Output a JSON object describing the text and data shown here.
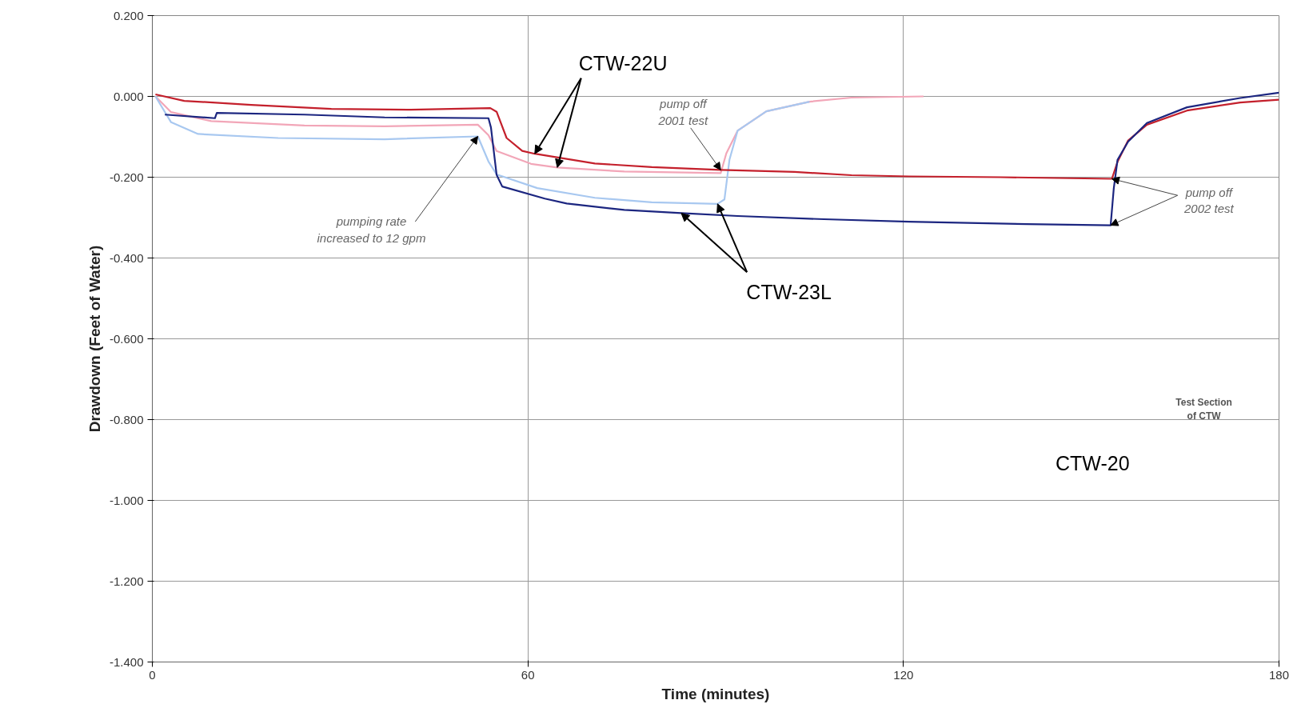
{
  "chart_data": {
    "type": "line",
    "xlabel": "Time (minutes)",
    "ylabel": "Drawdown (Feet of Water)",
    "xlim": [
      0,
      180
    ],
    "xticks": [
      0,
      60,
      120,
      180
    ],
    "ylim": [
      -1.4,
      0.2
    ],
    "yticks": [
      {
        "value": 0.2,
        "label": "0.200"
      },
      {
        "value": 0,
        "label": "0.000"
      },
      {
        "value": -0.2,
        "label": "-0.200"
      },
      {
        "value": -0.4,
        "label": "-0.400"
      },
      {
        "value": -0.6,
        "label": "-0.600"
      },
      {
        "value": -0.8,
        "label": "-0.800"
      },
      {
        "value": -1.0,
        "label": "-1.000"
      },
      {
        "value": -1.2,
        "label": "-1.200"
      },
      {
        "value": -1.4,
        "label": "-1.400"
      }
    ],
    "grid": true,
    "marker": "none",
    "line_style": "solid",
    "series": [
      {
        "color": "#f2a6b8",
        "x": [
          0.5,
          3,
          9.4,
          24.3,
          37.1,
          52,
          53.7,
          55,
          60.5,
          64.7,
          75.4,
          90.8,
          91.7,
          93.5,
          98.1,
          105,
          111.7,
          123.2
        ],
        "values": [
          0.0,
          -0.039,
          -0.061,
          -0.072,
          -0.074,
          -0.07,
          -0.096,
          -0.135,
          -0.167,
          -0.176,
          -0.186,
          -0.19,
          -0.141,
          -0.085,
          -0.037,
          -0.013,
          -0.003,
          0.0
        ]
      },
      {
        "color": "#a8c8f0",
        "x": [
          0.5,
          3,
          7.3,
          20.1,
          37.1,
          52,
          53.7,
          55,
          61.5,
          70.7,
          79.8,
          90.3,
          91.4,
          92.2,
          93.5,
          98.1,
          105
        ],
        "values": [
          0.0,
          -0.064,
          -0.093,
          -0.103,
          -0.106,
          -0.099,
          -0.161,
          -0.193,
          -0.227,
          -0.251,
          -0.262,
          -0.266,
          -0.255,
          -0.157,
          -0.085,
          -0.037,
          -0.013
        ]
      },
      {
        "color": "#c4202c",
        "x": [
          0.5,
          5.1,
          15.8,
          28.6,
          41.3,
          54,
          55,
          56.6,
          59.1,
          61.1,
          70.7,
          79.8,
          90.8,
          102.6,
          111.7,
          120.9,
          135.5,
          153.3,
          154.2,
          155.9,
          158.9,
          165.3,
          173.8,
          180
        ],
        "values": [
          0.005,
          -0.011,
          -0.021,
          -0.031,
          -0.033,
          -0.029,
          -0.038,
          -0.103,
          -0.135,
          -0.142,
          -0.166,
          -0.175,
          -0.182,
          -0.187,
          -0.195,
          -0.198,
          -0.2,
          -0.204,
          -0.162,
          -0.109,
          -0.07,
          -0.035,
          -0.015,
          -0.008
        ]
      },
      {
        "color": "#1c2680",
        "x": [
          2,
          10,
          10.3,
          24.3,
          37.1,
          53.7,
          54.1,
          55,
          55.9,
          62.7,
          66.2,
          75.4,
          84.5,
          93.5,
          107.3,
          120.9,
          139.7,
          153.1,
          153.6,
          154.2,
          155.9,
          158.9,
          165.3,
          173.8,
          180
        ],
        "values": [
          -0.045,
          -0.054,
          -0.041,
          -0.045,
          -0.052,
          -0.054,
          -0.077,
          -0.194,
          -0.223,
          -0.253,
          -0.265,
          -0.281,
          -0.289,
          -0.296,
          -0.304,
          -0.31,
          -0.316,
          -0.319,
          -0.228,
          -0.157,
          -0.112,
          -0.066,
          -0.027,
          -0.004,
          0.009
        ]
      }
    ],
    "annotations": [
      {
        "text": "CTW-22U",
        "x": 61.1,
        "y": -0.142
      },
      {
        "text": "pump off\n2001 test",
        "x": 90.8,
        "y": -0.182
      },
      {
        "text": "pumping rate\nincreased to 12 gpm",
        "x": 52,
        "y": -0.099
      },
      {
        "text": "CTW-23L",
        "x": 84.5,
        "y": -0.289
      },
      {
        "text": "pump off\n2002 test",
        "x": 153.3,
        "y": -0.204
      },
      "CTW-20",
      "Test Section\nof CTW"
    ]
  }
}
